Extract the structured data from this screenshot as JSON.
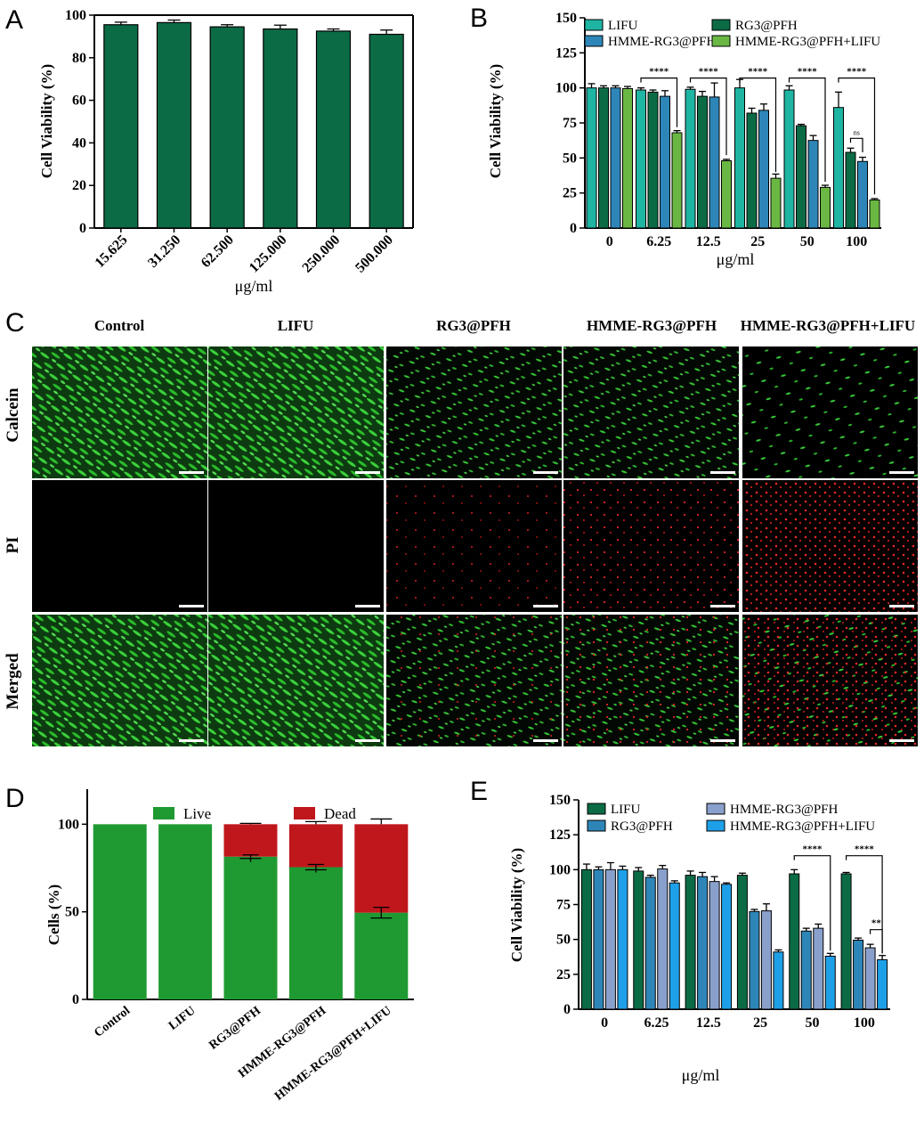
{
  "panels": {
    "a": "A",
    "b": "B",
    "c": "C",
    "d": "D",
    "e": "E"
  },
  "colors": {
    "dark_green": "#0b6b45",
    "teal": "#1fb5a3",
    "steel_blue": "#2e86b8",
    "lime": "#6ab843",
    "slate": "#8aa0cc",
    "sky": "#1ea0e8",
    "dead_red": "#c0171d",
    "live_green": "#1f9a32"
  },
  "chart_data": [
    {
      "id": "A",
      "type": "bar",
      "categories": [
        "15.625",
        "31.250",
        "62.500",
        "125.000",
        "250.000",
        "500.000"
      ],
      "values": [
        95.5,
        96.5,
        94.5,
        93.5,
        92.5,
        91
      ],
      "errors": [
        1.2,
        1.2,
        1,
        1.8,
        1,
        2
      ],
      "xlabel": "μg/ml",
      "ylabel": "Cell Viability (%)",
      "ylim": [
        0,
        100
      ],
      "yticks": [
        "0",
        "20",
        "40",
        "60",
        "80",
        "100"
      ]
    },
    {
      "id": "B",
      "type": "bar",
      "categories": [
        "0",
        "6.25",
        "12.5",
        "25",
        "50",
        "100"
      ],
      "series": [
        {
          "name": "LIFU",
          "values": [
            100,
            98.5,
            99,
            100,
            98.5,
            86
          ],
          "errors": [
            3,
            1.5,
            1.5,
            6,
            3,
            11
          ]
        },
        {
          "name": "RG3@PFH",
          "values": [
            100,
            97,
            94,
            82,
            73,
            54
          ],
          "errors": [
            1.5,
            1.5,
            3.5,
            3.5,
            1,
            3
          ]
        },
        {
          "name": "HMME-RG3@PFH",
          "values": [
            100,
            94,
            93.5,
            84,
            62.5,
            47.5
          ],
          "errors": [
            1.5,
            4,
            10,
            4.5,
            3.5,
            3
          ]
        },
        {
          "name": "HMME-RG3@PFH+LIFU",
          "values": [
            99.5,
            68,
            48,
            35.5,
            29,
            20
          ],
          "errors": [
            1.5,
            1.5,
            1,
            3,
            1.5,
            1
          ]
        }
      ],
      "xlabel": "μg/ml",
      "ylabel": "Cell Viability (%)",
      "ylim": [
        0,
        150
      ],
      "yticks": [
        "0",
        "25",
        "50",
        "75",
        "100",
        "125",
        "150"
      ],
      "annotations": [
        "****",
        "****",
        "****",
        "****",
        "****",
        "ns"
      ]
    },
    {
      "id": "D",
      "type": "bar",
      "stacked": true,
      "categories": [
        "Control",
        "LIFU",
        "RG3@PFH",
        "HMME-RG3@PFH",
        "HMME-RG3@PFH+LIFU"
      ],
      "series": [
        {
          "name": "Live",
          "values": [
            100,
            100,
            81.5,
            75.5,
            49.5
          ],
          "errors": [
            0,
            0,
            1,
            1.5,
            3
          ]
        },
        {
          "name": "Dead",
          "values": [
            0,
            0,
            18.5,
            24.5,
            50.5
          ],
          "errors": [
            0,
            0,
            0.5,
            1.5,
            3
          ]
        }
      ],
      "ylabel": "Cells (%)",
      "ylim": [
        0,
        120
      ],
      "yticks": [
        "0",
        "50",
        "100"
      ]
    },
    {
      "id": "E",
      "type": "bar",
      "categories": [
        "0",
        "6.25",
        "12.5",
        "25",
        "50",
        "100"
      ],
      "series": [
        {
          "name": "LIFU",
          "values": [
            100,
            99,
            96,
            96,
            97,
            97
          ],
          "errors": [
            4,
            2.5,
            3,
            1.5,
            3,
            1
          ]
        },
        {
          "name": "RG3@PFH",
          "values": [
            100,
            94.5,
            95,
            70,
            56,
            49.5
          ],
          "errors": [
            2,
            1.5,
            3,
            1.5,
            2,
            1.5
          ]
        },
        {
          "name": "HMME-RG3@PFH",
          "values": [
            100,
            100.5,
            91.5,
            70.5,
            58,
            44
          ],
          "errors": [
            5,
            2.5,
            3.5,
            5,
            3,
            2.5
          ]
        },
        {
          "name": "HMME-RG3@PFH+LIFU",
          "values": [
            100,
            90.5,
            89.5,
            41,
            38,
            35.5
          ],
          "errors": [
            2.5,
            1.5,
            1,
            1.5,
            2,
            3
          ]
        }
      ],
      "xlabel": "μg/ml",
      "ylabel": "Cell Viability (%)",
      "ylim": [
        0,
        150
      ],
      "yticks": [
        "0",
        "25",
        "50",
        "75",
        "100",
        "125",
        "150"
      ],
      "annotations": [
        "****",
        "****",
        "**"
      ]
    }
  ],
  "microscopy": {
    "columns": [
      "Control",
      "LIFU",
      "RG3@PFH",
      "HMME-RG3@PFH",
      "HMME-RG3@PFH+LIFU"
    ],
    "rows": [
      "Calcein",
      "PI",
      "Merged"
    ],
    "green_density": [
      1.0,
      1.0,
      0.45,
      0.38,
      0.22
    ],
    "red_density": [
      0,
      0,
      0.18,
      0.25,
      0.55
    ]
  }
}
